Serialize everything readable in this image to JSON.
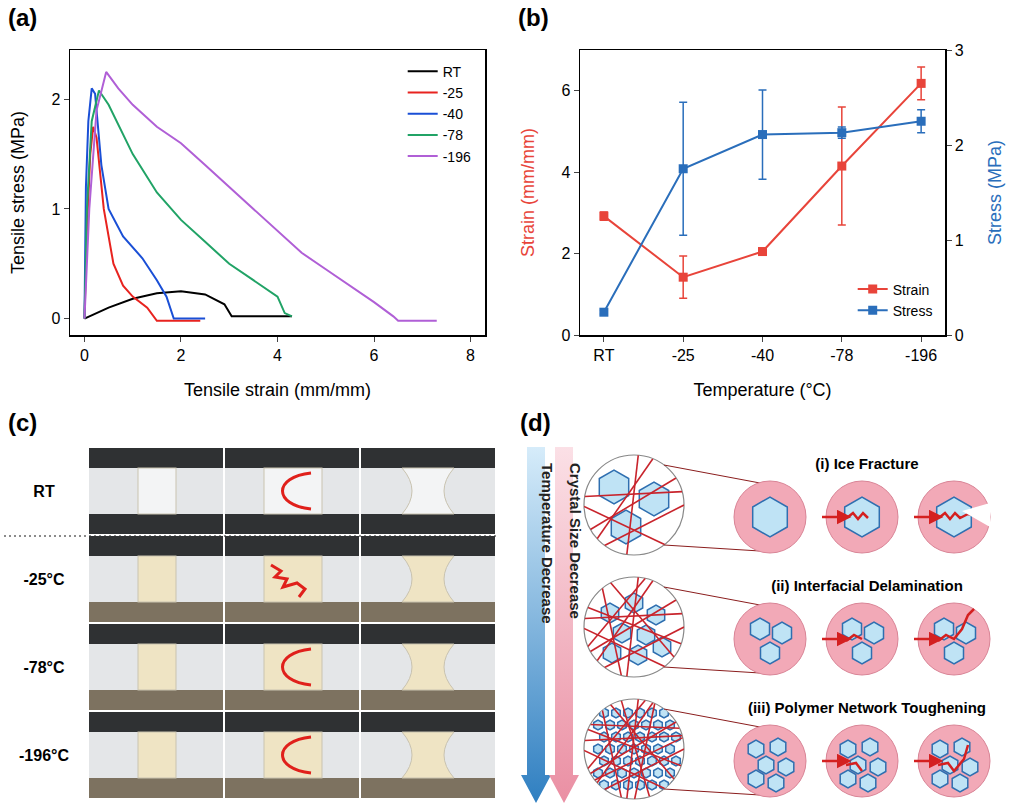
{
  "panels": {
    "a": "(a)",
    "b": "(b)",
    "c": "(c)",
    "d": "(d)"
  },
  "chart_data": [
    {
      "type": "line",
      "xlabel": "Tensile strain (mm/mm)",
      "ylabel": "Tensile stress (MPa)",
      "xlim": [
        -0.3,
        8.3
      ],
      "xticks": [
        0,
        2,
        4,
        6,
        8
      ],
      "ylim": [
        -0.15,
        2.45
      ],
      "yticks": [
        0,
        1,
        2
      ],
      "grid": false,
      "legend": "top-right",
      "series": [
        {
          "name": "RT",
          "color": "#000000",
          "x": [
            0,
            0.5,
            1.0,
            1.5,
            2.0,
            2.5,
            2.9,
            3.05,
            3.1,
            4.3
          ],
          "values": [
            0,
            0.1,
            0.18,
            0.23,
            0.25,
            0.22,
            0.13,
            0.02,
            0.02,
            0.02
          ]
        },
        {
          "name": "-25",
          "color": "#e8231f",
          "x": [
            0,
            0.05,
            0.12,
            0.18,
            0.25,
            0.4,
            0.6,
            0.8,
            1.0,
            1.3,
            1.5,
            2.4
          ],
          "values": [
            0,
            0.8,
            1.5,
            1.75,
            1.65,
            1.0,
            0.5,
            0.3,
            0.2,
            0.1,
            -0.02,
            -0.02
          ]
        },
        {
          "name": "-40",
          "color": "#1a4fd6",
          "x": [
            0,
            0.03,
            0.08,
            0.15,
            0.22,
            0.35,
            0.5,
            0.8,
            1.2,
            1.5,
            1.7,
            1.85,
            2.5
          ],
          "values": [
            0,
            1.2,
            1.8,
            2.1,
            2.05,
            1.4,
            1.0,
            0.75,
            0.55,
            0.35,
            0.2,
            0,
            0
          ]
        },
        {
          "name": "-78",
          "color": "#21a366",
          "x": [
            0,
            0.05,
            0.15,
            0.3,
            0.5,
            1.0,
            1.5,
            2.0,
            2.5,
            3.0,
            3.5,
            4.0,
            4.15,
            4.3
          ],
          "values": [
            0,
            1.0,
            1.8,
            2.08,
            1.95,
            1.5,
            1.15,
            0.9,
            0.7,
            0.5,
            0.35,
            0.2,
            0.05,
            0.02
          ]
        },
        {
          "name": "-196",
          "color": "#b05fd6",
          "x": [
            0,
            0.1,
            0.25,
            0.45,
            0.7,
            1.0,
            1.5,
            2.0,
            2.5,
            3.0,
            3.5,
            4.0,
            4.5,
            5.0,
            5.5,
            6.0,
            6.4,
            6.5,
            7.3
          ],
          "values": [
            0,
            1.0,
            1.9,
            2.25,
            2.1,
            1.95,
            1.75,
            1.6,
            1.4,
            1.2,
            1.0,
            0.8,
            0.6,
            0.45,
            0.3,
            0.15,
            0.02,
            -0.02,
            -0.02
          ]
        }
      ]
    },
    {
      "type": "line",
      "categories": [
        "RT",
        "-25",
        "-40",
        "-78",
        "-196"
      ],
      "xlabel": "Temperature (°C)",
      "ylabel": "Strain (mm/mm)",
      "y2label": "Stress (MPa)",
      "ylim": [
        0,
        7
      ],
      "yticks": [
        0,
        2,
        4,
        6
      ],
      "y2lim": [
        0,
        3
      ],
      "y2ticks": [
        0,
        1,
        2,
        3
      ],
      "grid": false,
      "legend": "bottom-right",
      "marker": "square",
      "series": [
        {
          "name": "Strain",
          "color": "#e8443a",
          "values": [
            2.92,
            1.42,
            2.05,
            4.15,
            6.18
          ],
          "errors": [
            0.1,
            0.52,
            0.08,
            1.45,
            0.4
          ]
        },
        {
          "name": "Stress",
          "color": "#2a6ebb",
          "axis": "y2",
          "values": [
            0.24,
            1.75,
            2.11,
            2.13,
            2.25
          ],
          "errors": [
            0.02,
            0.7,
            0.47,
            0.06,
            0.12
          ]
        }
      ]
    }
  ],
  "photos": {
    "rows": [
      "RT",
      "-25°C",
      "-78°C",
      "-196°C"
    ]
  },
  "diagram": {
    "arrows": [
      "Temperature Decrease",
      "Crystal Size Decrease"
    ],
    "mechanisms": [
      "(i) Ice Fracture",
      "(ii) Interfacial Delamination",
      "(iii) Polymer Network Toughening"
    ]
  }
}
